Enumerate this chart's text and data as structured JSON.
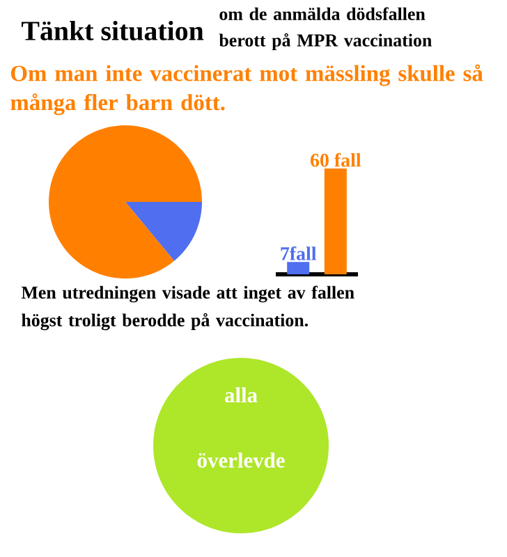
{
  "chart_data": [
    {
      "type": "pie",
      "title": "Tänkt situation",
      "subtitle": "om de anmälda dödsfallen berott på MPR vaccination",
      "annotations": [
        "Om man inte vaccinerat mot mässling skulle så många fler barn dött."
      ],
      "categories": [
        null,
        null
      ],
      "values": [
        14,
        86
      ],
      "colors": [
        "#4f6ef0",
        "#ff8000"
      ]
    },
    {
      "type": "bar",
      "categories": [
        null,
        null
      ],
      "values": [
        7,
        60
      ],
      "colors": [
        "#4f6ef0",
        "#ff8000"
      ],
      "value_labels": [
        "7fall",
        "60 fall"
      ]
    },
    {
      "type": "other",
      "annotations": [
        "Men utredningen visade att inget av fallen högst troligt berodde på vaccination.",
        "alla överlevde"
      ]
    }
  ]
}
